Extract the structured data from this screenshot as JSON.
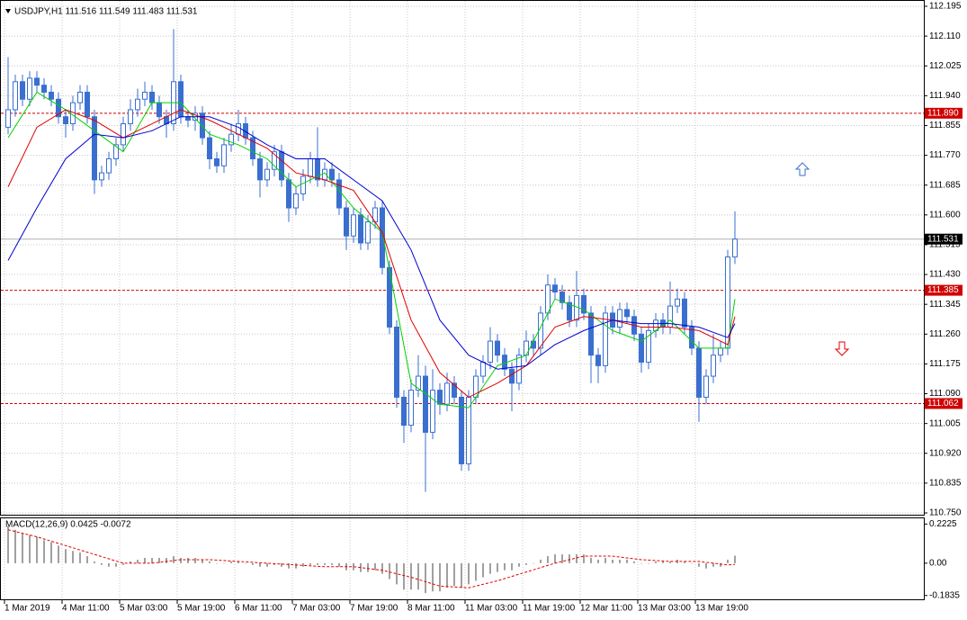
{
  "chart_data": {
    "type": "candlestick",
    "title": "USDJPY,H1  111.516 111.549 111.483 111.531",
    "ylim": [
      110.75,
      112.195
    ],
    "yticks": [
      {
        "value": 110.75,
        "label": "110.750"
      },
      110.835,
      {
        "value": 110.92,
        "label": "110.920"
      },
      111.005,
      {
        "value": 111.09,
        "label": "111.090"
      },
      111.175,
      {
        "value": 111.26,
        "label": "111.260"
      },
      111.345,
      {
        "value": 111.43,
        "label": "111.430"
      },
      111.515,
      {
        "value": 111.6,
        "label": "111.600"
      },
      111.685,
      {
        "value": 111.77,
        "label": "111.770"
      },
      111.855,
      {
        "value": 111.94,
        "label": "111.940"
      },
      112.025,
      {
        "value": 112.11,
        "label": "112.110"
      },
      112.195
    ],
    "xticks": [
      {
        "value": 0,
        "label": "1 Mar 2019"
      },
      {
        "value": 8,
        "label": "4 Mar 11:00"
      },
      {
        "value": 16,
        "label": "5 Mar 03:00"
      },
      {
        "value": 24,
        "label": "5 Mar 19:00"
      },
      {
        "value": 32,
        "label": "6 Mar 11:00"
      },
      {
        "value": 40,
        "label": "7 Mar 03:00"
      },
      {
        "value": 48,
        "label": "7 Mar 19:00"
      },
      {
        "value": 56,
        "label": "8 Mar 11:00"
      },
      {
        "value": 64,
        "label": "11 Mar 03:00"
      },
      {
        "value": 72,
        "label": "11 Mar 19:00"
      },
      {
        "value": 80,
        "label": "12 Mar 11:00"
      },
      {
        "value": 88,
        "label": "13 Mar 03:00"
      },
      {
        "value": 96,
        "label": "13 Mar 19:00"
      }
    ],
    "grid": true,
    "color": "#3a6fd0",
    "open": [
      111.85,
      111.9,
      111.98,
      111.93,
      111.99,
      111.97,
      111.95,
      111.93,
      111.88,
      111.86,
      111.92,
      111.95,
      111.88,
      111.7,
      111.72,
      111.76,
      111.8,
      111.86,
      111.9,
      111.93,
      111.95,
      111.92,
      111.88,
      111.86,
      111.98,
      111.88,
      111.87,
      111.89,
      111.82,
      111.76,
      111.74,
      111.8,
      111.83,
      111.86,
      111.82,
      111.76,
      111.7,
      111.73,
      111.78,
      111.7,
      111.62,
      111.66,
      111.71,
      111.76,
      111.7,
      111.73,
      111.7,
      111.62,
      111.54,
      111.6,
      111.52,
      111.58,
      111.62,
      111.45,
      111.28,
      111.08,
      111.0,
      111.1,
      111.14,
      110.98,
      111.1,
      111.06,
      111.12,
      111.08,
      110.89,
      111.08,
      111.14,
      111.18,
      111.24,
      111.2,
      111.16,
      111.12,
      111.2,
      111.24,
      111.22,
      111.32,
      111.4,
      111.38,
      111.35,
      111.3,
      111.37,
      111.32,
      111.2,
      111.17,
      111.32,
      111.28,
      111.33,
      111.31,
      111.26,
      111.18,
      111.27,
      111.3,
      111.28,
      111.34,
      111.36,
      111.28,
      111.22,
      111.08,
      111.14,
      111.2,
      111.22,
      111.48
    ],
    "high": [
      112.05,
      112.0,
      112.0,
      112.01,
      112.01,
      111.99,
      111.97,
      111.95,
      111.9,
      111.94,
      111.97,
      111.97,
      111.9,
      111.74,
      111.78,
      111.82,
      111.88,
      111.93,
      111.96,
      111.98,
      111.97,
      111.94,
      111.9,
      112.13,
      112.0,
      111.9,
      111.91,
      111.91,
      111.84,
      111.78,
      111.82,
      111.86,
      111.9,
      111.88,
      111.84,
      111.78,
      111.75,
      111.8,
      111.8,
      111.72,
      111.68,
      111.73,
      111.78,
      111.85,
      111.75,
      111.75,
      111.72,
      111.64,
      111.62,
      111.62,
      111.6,
      111.64,
      111.64,
      111.47,
      111.3,
      111.1,
      111.13,
      111.2,
      111.17,
      111.16,
      111.12,
      111.15,
      111.14,
      111.1,
      111.1,
      111.16,
      111.2,
      111.28,
      111.26,
      111.22,
      111.18,
      111.22,
      111.27,
      111.26,
      111.34,
      111.43,
      111.42,
      111.4,
      111.37,
      111.44,
      111.39,
      111.34,
      111.22,
      111.34,
      111.34,
      111.35,
      111.35,
      111.33,
      111.28,
      111.29,
      111.32,
      111.32,
      111.41,
      111.39,
      111.38,
      111.3,
      111.24,
      111.16,
      111.26,
      111.24,
      111.5,
      111.61
    ],
    "low": [
      111.83,
      111.88,
      111.91,
      111.91,
      111.95,
      111.93,
      111.91,
      111.86,
      111.82,
      111.84,
      111.9,
      111.86,
      111.66,
      111.68,
      111.7,
      111.74,
      111.78,
      111.84,
      111.88,
      111.91,
      111.9,
      111.86,
      111.82,
      111.84,
      111.86,
      111.85,
      111.84,
      111.8,
      111.73,
      111.72,
      111.72,
      111.78,
      111.81,
      111.8,
      111.74,
      111.65,
      111.68,
      111.71,
      111.68,
      111.58,
      111.6,
      111.64,
      111.69,
      111.68,
      111.68,
      111.68,
      111.6,
      111.5,
      111.52,
      111.5,
      111.5,
      111.56,
      111.43,
      111.26,
      111.05,
      110.95,
      110.98,
      111.08,
      110.81,
      110.96,
      111.03,
      111.04,
      111.06,
      110.87,
      110.87,
      111.06,
      111.12,
      111.16,
      111.18,
      111.14,
      111.04,
      111.1,
      111.18,
      111.2,
      111.2,
      111.3,
      111.36,
      111.33,
      111.28,
      111.28,
      111.3,
      111.12,
      111.12,
      111.15,
      111.26,
      111.26,
      111.29,
      111.24,
      111.15,
      111.16,
      111.25,
      111.26,
      111.26,
      111.32,
      111.26,
      111.2,
      111.01,
      111.06,
      111.12,
      111.18,
      111.2,
      111.46
    ],
    "close": [
      111.9,
      111.98,
      111.93,
      111.99,
      111.97,
      111.95,
      111.93,
      111.88,
      111.86,
      111.92,
      111.95,
      111.88,
      111.7,
      111.72,
      111.76,
      111.8,
      111.86,
      111.9,
      111.93,
      111.95,
      111.92,
      111.88,
      111.86,
      111.98,
      111.88,
      111.87,
      111.89,
      111.82,
      111.76,
      111.74,
      111.8,
      111.83,
      111.86,
      111.82,
      111.76,
      111.7,
      111.73,
      111.78,
      111.7,
      111.62,
      111.66,
      111.71,
      111.76,
      111.7,
      111.73,
      111.7,
      111.62,
      111.54,
      111.6,
      111.52,
      111.58,
      111.62,
      111.45,
      111.28,
      111.08,
      111.0,
      111.1,
      111.14,
      110.98,
      111.1,
      111.06,
      111.12,
      111.08,
      110.89,
      111.08,
      111.14,
      111.18,
      111.24,
      111.2,
      111.16,
      111.12,
      111.2,
      111.24,
      111.22,
      111.32,
      111.4,
      111.38,
      111.35,
      111.3,
      111.37,
      111.32,
      111.2,
      111.17,
      111.32,
      111.28,
      111.33,
      111.31,
      111.26,
      111.18,
      111.27,
      111.3,
      111.28,
      111.34,
      111.36,
      111.28,
      111.22,
      111.08,
      111.14,
      111.2,
      111.22,
      111.48,
      111.531
    ],
    "series": [
      {
        "color": "#00d000",
        "x": [
          0,
          4,
          8,
          12,
          16,
          20,
          24,
          28,
          32,
          36,
          40,
          44,
          48,
          52,
          56,
          60,
          64,
          68,
          72,
          76,
          80,
          84,
          88,
          92,
          96,
          100,
          101
        ],
        "values": [
          111.82,
          111.95,
          111.9,
          111.84,
          111.78,
          111.92,
          111.92,
          111.83,
          111.8,
          111.76,
          111.68,
          111.72,
          111.62,
          111.55,
          111.12,
          111.06,
          111.05,
          111.17,
          111.2,
          111.36,
          111.33,
          111.27,
          111.24,
          111.3,
          111.22,
          111.22,
          111.36
        ]
      },
      {
        "color": "#e00000",
        "x": [
          0,
          4,
          8,
          12,
          16,
          20,
          24,
          28,
          32,
          36,
          40,
          44,
          48,
          52,
          56,
          60,
          64,
          68,
          72,
          76,
          80,
          84,
          88,
          92,
          96,
          100,
          101
        ],
        "values": [
          111.68,
          111.85,
          111.9,
          111.87,
          111.82,
          111.86,
          111.9,
          111.87,
          111.83,
          111.79,
          111.72,
          111.7,
          111.67,
          111.55,
          111.3,
          111.15,
          111.08,
          111.12,
          111.17,
          111.28,
          111.31,
          111.3,
          111.28,
          111.28,
          111.27,
          111.23,
          111.31
        ]
      },
      {
        "color": "#0000d0",
        "x": [
          0,
          4,
          8,
          12,
          16,
          20,
          24,
          28,
          32,
          36,
          40,
          44,
          48,
          52,
          56,
          60,
          64,
          68,
          72,
          76,
          80,
          84,
          88,
          92,
          96,
          100,
          101
        ],
        "values": [
          111.47,
          111.62,
          111.76,
          111.83,
          111.82,
          111.84,
          111.88,
          111.88,
          111.85,
          111.8,
          111.76,
          111.76,
          111.7,
          111.64,
          111.5,
          111.3,
          111.2,
          111.16,
          111.17,
          111.23,
          111.27,
          111.3,
          111.29,
          111.29,
          111.28,
          111.25,
          111.29
        ]
      }
    ],
    "levels": [
      {
        "value": 111.89,
        "label": "111.890"
      },
      {
        "value": 111.385,
        "label": "111.385"
      },
      {
        "value": 111.062,
        "label": "111.062"
      }
    ],
    "level_color": "#d00000",
    "bid": 111.531,
    "macd": {
      "title": "MACD(12,26,9) 0.0425 -0.0072",
      "ylim": [
        -0.2,
        0.255
      ],
      "yticks": [
        0.2225,
        {
          "value": 0,
          "label": "0.00"
        },
        -0.1835
      ],
      "histogram": [
        0.21,
        0.19,
        0.17,
        0.16,
        0.15,
        0.13,
        0.12,
        0.1,
        0.08,
        0.07,
        0.06,
        0.04,
        0.01,
        -0.01,
        -0.02,
        -0.02,
        -0.01,
        0.01,
        0.02,
        0.03,
        0.03,
        0.03,
        0.03,
        0.04,
        0.03,
        0.03,
        0.03,
        0.02,
        0.01,
        0.0,
        0.0,
        0.01,
        0.01,
        0.0,
        -0.01,
        -0.02,
        -0.02,
        -0.01,
        -0.02,
        -0.03,
        -0.03,
        -0.02,
        -0.01,
        -0.01,
        -0.01,
        -0.01,
        -0.02,
        -0.04,
        -0.04,
        -0.05,
        -0.05,
        -0.04,
        -0.06,
        -0.09,
        -0.12,
        -0.15,
        -0.15,
        -0.15,
        -0.17,
        -0.16,
        -0.16,
        -0.14,
        -0.13,
        -0.14,
        -0.12,
        -0.1,
        -0.08,
        -0.06,
        -0.05,
        -0.04,
        -0.04,
        -0.02,
        -0.01,
        0.0,
        0.02,
        0.04,
        0.05,
        0.05,
        0.05,
        0.05,
        0.05,
        0.03,
        0.02,
        0.03,
        0.02,
        0.02,
        0.02,
        0.01,
        0.0,
        0.0,
        0.01,
        0.01,
        0.01,
        0.02,
        0.01,
        0.0,
        -0.02,
        -0.03,
        -0.02,
        -0.02,
        0.02,
        0.0425
      ],
      "histogram_color": "#a0a0a0",
      "signal": {
        "color": "#e00000",
        "x": [
          0,
          4,
          8,
          12,
          16,
          20,
          24,
          28,
          32,
          36,
          40,
          44,
          48,
          52,
          56,
          60,
          64,
          68,
          72,
          76,
          80,
          84,
          88,
          92,
          96,
          100,
          101
        ],
        "values": [
          0.19,
          0.15,
          0.1,
          0.05,
          0.0,
          0.0,
          0.02,
          0.02,
          0.01,
          0.0,
          -0.01,
          -0.02,
          -0.02,
          -0.04,
          -0.08,
          -0.13,
          -0.14,
          -0.1,
          -0.05,
          0.0,
          0.04,
          0.04,
          0.02,
          0.01,
          0.01,
          -0.01,
          -0.0072
        ]
      }
    }
  }
}
